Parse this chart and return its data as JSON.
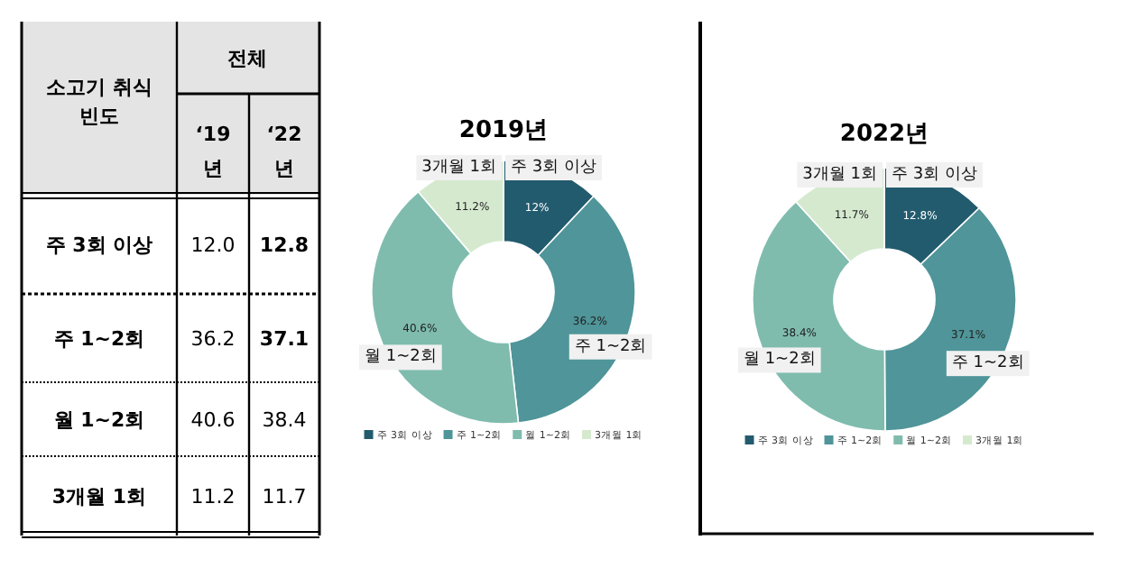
{
  "chart_data": [
    {
      "type": "other",
      "title": "전체",
      "ylabel": "소고기 취식 빈도",
      "categories": [
        "주 3회 이상",
        "주 1~2회",
        "월 1~2회",
        "3개월 1회"
      ],
      "data_labels": true,
      "series": [
        {
          "name": "‘19년",
          "values": [
            12.0,
            36.2,
            40.6,
            11.2
          ],
          "value_labels": [
            "12.0",
            "36.2",
            "40.6",
            "11.2"
          ]
        },
        {
          "name": "‘22년",
          "values": [
            12.8,
            37.1,
            38.4,
            11.7
          ],
          "value_labels": [
            "12.8",
            "37.1",
            "38.4",
            "11.7"
          ]
        }
      ]
    },
    {
      "type": "donut",
      "title": "2019년",
      "categories": [
        "주 3회 이상",
        "주 1~2회",
        "월 1~2회",
        "3개월 1회"
      ],
      "values": [
        12.0,
        36.2,
        40.6,
        11.2
      ],
      "value_labels": [
        "12%",
        "36.2%",
        "40.6%",
        "11.2%"
      ],
      "colors": [
        "#235b6e",
        "#4f9599",
        "#7fbcae",
        "#d5e9cf"
      ],
      "legend": "bottom"
    },
    {
      "type": "donut",
      "title": "2022년",
      "categories": [
        "주 3회 이상",
        "주 1~2회",
        "월 1~2회",
        "3개월 1회"
      ],
      "values": [
        12.8,
        37.1,
        38.4,
        11.7
      ],
      "value_labels": [
        "12.8%",
        "37.1%",
        "38.4%",
        "11.7%"
      ],
      "colors": [
        "#235b6e",
        "#4f9599",
        "#7fbcae",
        "#d5e9cf"
      ],
      "legend": "bottom"
    }
  ]
}
